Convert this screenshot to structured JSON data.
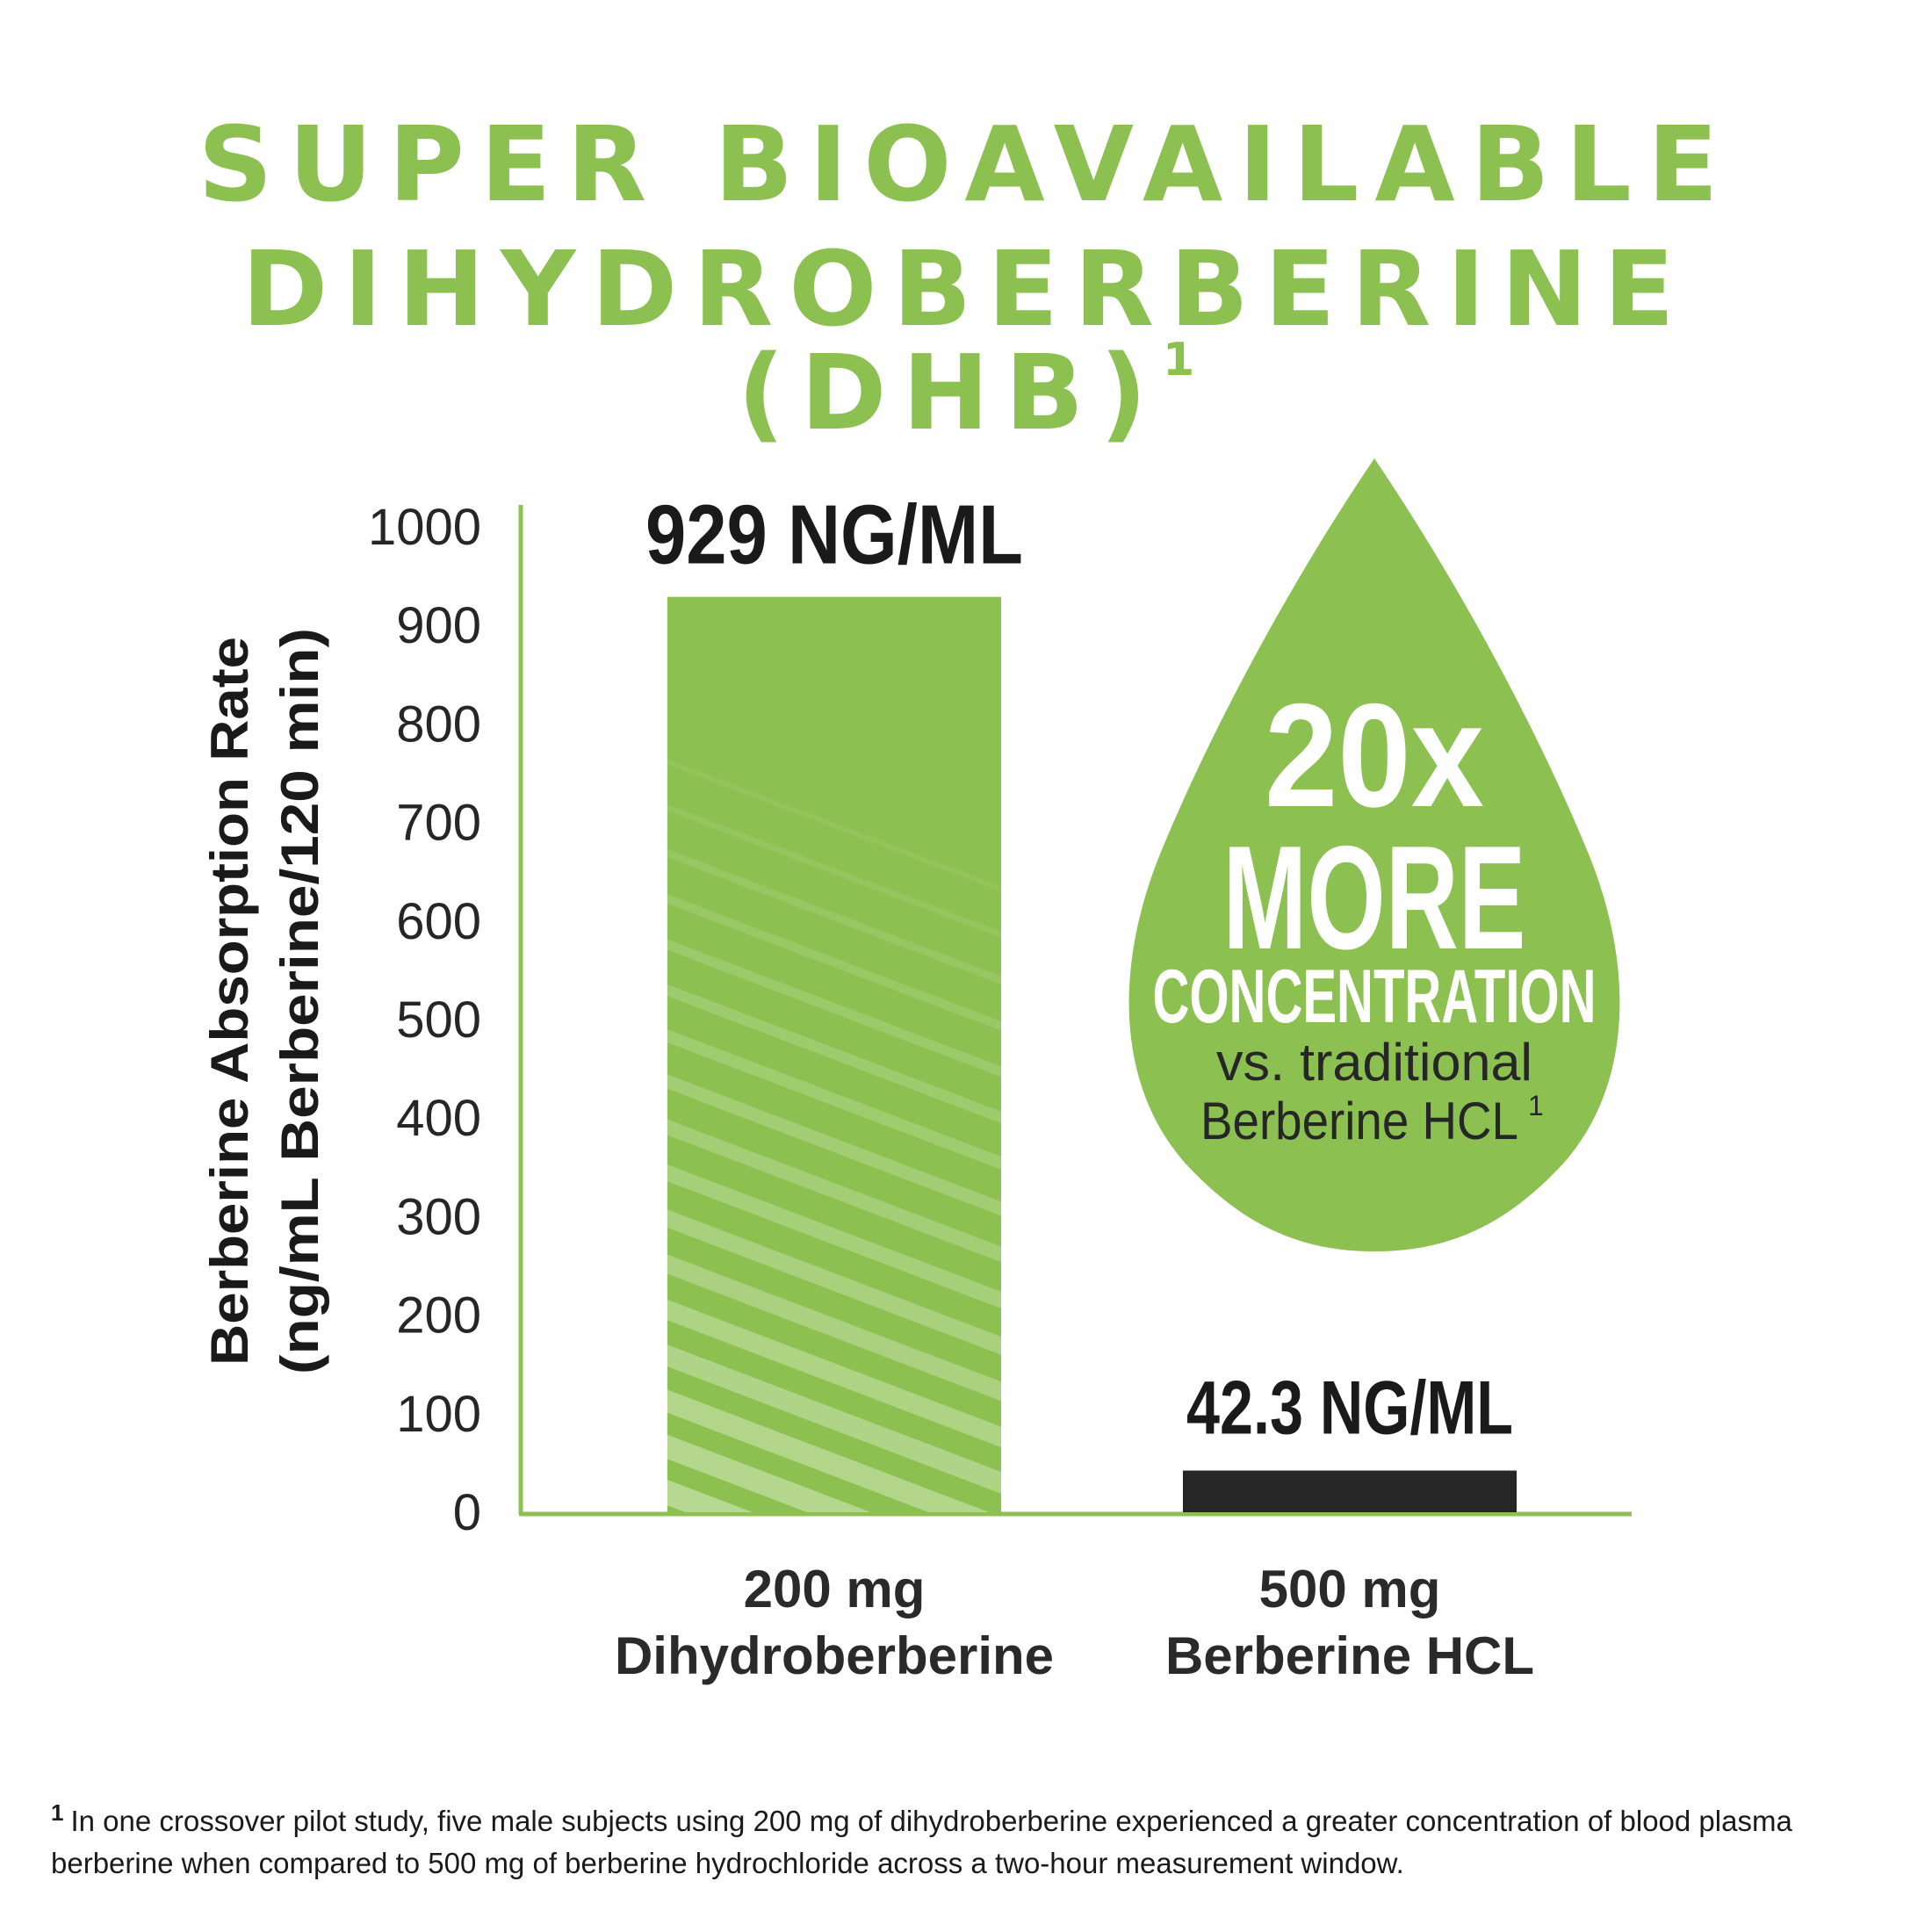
{
  "header": {
    "title_line_1": "SUPER BIOAVAILABLE",
    "title_line_2": "DIHYDROBERBERINE (DHB)",
    "title_superscript": "1"
  },
  "colors": {
    "brand_green": "#8cc151",
    "bar_light_green": "#a9d281",
    "dark_bar": "#262626",
    "text_dark": "#1a1a1a"
  },
  "chart_data": {
    "type": "bar",
    "categories": [
      "200 mg Dihydroberberine",
      "500 mg Berberine HCL"
    ],
    "category_lines": [
      [
        "200 mg",
        "Dihydroberberine"
      ],
      [
        "500 mg",
        "Berberine HCL"
      ]
    ],
    "values": [
      929,
      42.3
    ],
    "value_labels": [
      "929 NG/ML",
      "42.3 NG/ML"
    ],
    "bar_colors": [
      "#8cc151",
      "#262626"
    ],
    "ylabel_lines": [
      "Berberine Absorption Rate",
      "(ng/mL Berberine/120 min)"
    ],
    "ylim": [
      0,
      1000
    ],
    "yticks": [
      0,
      100,
      200,
      300,
      400,
      500,
      600,
      700,
      800,
      900,
      1000
    ],
    "grid": false,
    "legend": "none"
  },
  "callout": {
    "shape": "droplet",
    "line_1": "20x",
    "line_2": "MORE",
    "line_3": "CONCENTRATION",
    "line_4": "vs. traditional",
    "line_5": "Berberine HCL",
    "superscript": "1"
  },
  "footnote": {
    "marker": "1",
    "line_1": "In one crossover pilot study, five male subjects using 200 mg of dihydroberberine experienced a greater concentration of blood plasma",
    "line_2": "berberine when compared to 500 mg of berberine hydrochloride across a two-hour measurement window."
  }
}
